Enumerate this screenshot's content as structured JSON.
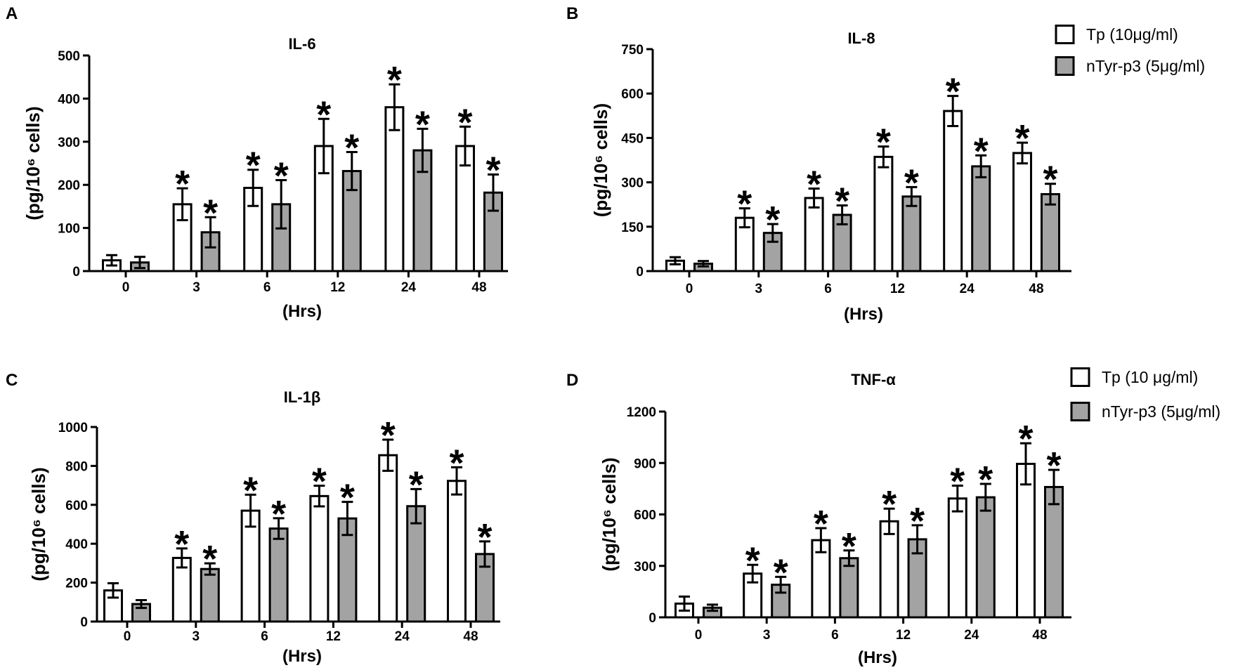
{
  "colors": {
    "axis": "#000000",
    "tp_fill": "#ffffff",
    "ntyr_fill": "#a3a3a3"
  },
  "chart_data": [
    {
      "panel": "A",
      "type": "bar",
      "title": "IL-6",
      "xlabel": "(Hrs)",
      "ylabel": "(pg/10⁶ cells)",
      "categories": [
        "0",
        "3",
        "6",
        "12",
        "24",
        "48"
      ],
      "ylim": [
        0,
        500
      ],
      "yticks": [
        0,
        100,
        200,
        300,
        400,
        500
      ],
      "marker": "*",
      "series": [
        {
          "values": [
            25,
            155,
            193,
            290,
            380,
            290
          ],
          "errors": [
            12,
            37,
            42,
            63,
            53,
            45
          ],
          "significant": [
            false,
            true,
            true,
            true,
            true,
            true
          ],
          "fill": "#ffffff"
        },
        {
          "values": [
            20,
            90,
            155,
            232,
            280,
            182
          ],
          "errors": [
            13,
            35,
            56,
            44,
            50,
            42
          ],
          "significant": [
            false,
            true,
            true,
            true,
            true,
            true
          ],
          "fill": "#a3a3a3"
        }
      ]
    },
    {
      "panel": "B",
      "type": "bar",
      "title": "IL-8",
      "xlabel": "(Hrs)",
      "ylabel": "(pg/10⁶ cells)",
      "categories": [
        "0",
        "3",
        "6",
        "12",
        "24",
        "48"
      ],
      "ylim": [
        0,
        750
      ],
      "yticks": [
        0,
        150,
        300,
        450,
        600,
        750
      ],
      "marker": "*",
      "series": [
        {
          "name": "Tp (10μg/ml)",
          "values": [
            35,
            180,
            247,
            386,
            541,
            399
          ],
          "errors": [
            12,
            32,
            32,
            35,
            51,
            35
          ],
          "significant": [
            false,
            true,
            true,
            true,
            true,
            true
          ],
          "fill": "#ffffff"
        },
        {
          "name": "nTyr-p3 (5μg/ml)",
          "values": [
            25,
            129,
            190,
            252,
            354,
            260
          ],
          "errors": [
            9,
            30,
            32,
            32,
            37,
            35
          ],
          "significant": [
            false,
            true,
            true,
            true,
            true,
            true
          ],
          "fill": "#a3a3a3"
        }
      ]
    },
    {
      "panel": "C",
      "type": "bar",
      "title": "IL-1β",
      "xlabel": "(Hrs)",
      "ylabel": "(pg/10⁶ cells)",
      "categories": [
        "0",
        "3",
        "6",
        "12",
        "24",
        "48"
      ],
      "ylim": [
        0,
        1000
      ],
      "yticks": [
        0,
        200,
        400,
        600,
        800,
        1000
      ],
      "marker": "*",
      "series": [
        {
          "values": [
            160,
            327,
            570,
            645,
            855,
            723
          ],
          "errors": [
            37,
            49,
            82,
            53,
            80,
            70
          ],
          "significant": [
            false,
            true,
            true,
            true,
            true,
            true
          ],
          "fill": "#ffffff"
        },
        {
          "values": [
            90,
            270,
            478,
            530,
            593,
            347
          ],
          "errors": [
            20,
            29,
            53,
            85,
            88,
            65
          ],
          "significant": [
            false,
            true,
            true,
            true,
            true,
            true
          ],
          "fill": "#a3a3a3"
        }
      ]
    },
    {
      "panel": "D",
      "type": "bar",
      "title": "TNF-α",
      "xlabel": "(Hrs)",
      "ylabel": "(pg/10⁶ cells)",
      "categories": [
        "0",
        "3",
        "6",
        "12",
        "24",
        "48"
      ],
      "ylim": [
        0,
        1200
      ],
      "yticks": [
        0,
        300,
        600,
        900,
        1200
      ],
      "marker": "*",
      "series": [
        {
          "name": "Tp (10 μg/ml)",
          "values": [
            80,
            255,
            450,
            560,
            693,
            895
          ],
          "errors": [
            41,
            51,
            70,
            74,
            75,
            120
          ],
          "significant": [
            false,
            true,
            true,
            true,
            true,
            true
          ],
          "fill": "#ffffff"
        },
        {
          "name": "nTyr-p3 (5μg/ml)",
          "values": [
            56,
            190,
            345,
            455,
            700,
            760
          ],
          "errors": [
            18,
            46,
            45,
            82,
            78,
            100
          ],
          "significant": [
            false,
            true,
            true,
            true,
            true,
            true
          ],
          "fill": "#a3a3a3"
        }
      ]
    }
  ]
}
